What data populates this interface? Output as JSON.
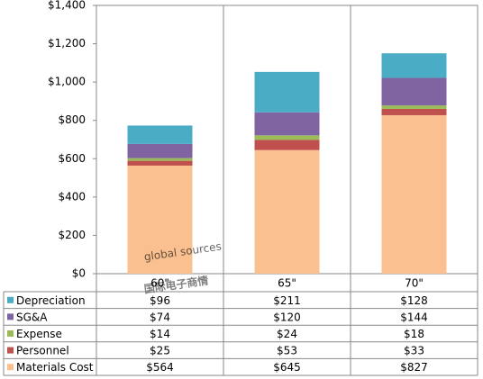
{
  "chart_data": {
    "type": "stacked_bar",
    "categories": [
      "60\"",
      "65\"",
      "70\""
    ],
    "series": [
      {
        "name": "Depreciation",
        "color": "#4bacc6",
        "values": [
          96,
          211,
          128
        ],
        "value_labels": [
          "$96",
          "$211",
          "$128"
        ]
      },
      {
        "name": "SG&A",
        "color": "#8064a2",
        "values": [
          74,
          120,
          144
        ],
        "value_labels": [
          "$74",
          "$120",
          "$144"
        ]
      },
      {
        "name": "Expense",
        "color": "#9bbb59",
        "values": [
          14,
          24,
          18
        ],
        "value_labels": [
          "$14",
          "$24",
          "$18"
        ]
      },
      {
        "name": "Personnel",
        "color": "#c0504d",
        "values": [
          25,
          53,
          33
        ],
        "value_labels": [
          "$25",
          "$53",
          "$33"
        ]
      },
      {
        "name": "Materials Cost",
        "color": "#fac090",
        "values": [
          564,
          645,
          827
        ],
        "value_labels": [
          "$564",
          "$645",
          "$827"
        ]
      }
    ],
    "ylim": [
      0,
      1400
    ],
    "yticks": [
      {
        "value": 0,
        "label": "$0"
      },
      {
        "value": 200,
        "label": "$200"
      },
      {
        "value": 400,
        "label": "$400"
      },
      {
        "value": 600,
        "label": "$600"
      },
      {
        "value": 800,
        "label": "$800"
      },
      {
        "value": 1000,
        "label": "$1,000"
      },
      {
        "value": 1200,
        "label": "$1,200"
      },
      {
        "value": 1400,
        "label": "$1,400"
      }
    ],
    "grid": false,
    "watermark": [
      "global sources",
      "国际电子商情"
    ]
  }
}
